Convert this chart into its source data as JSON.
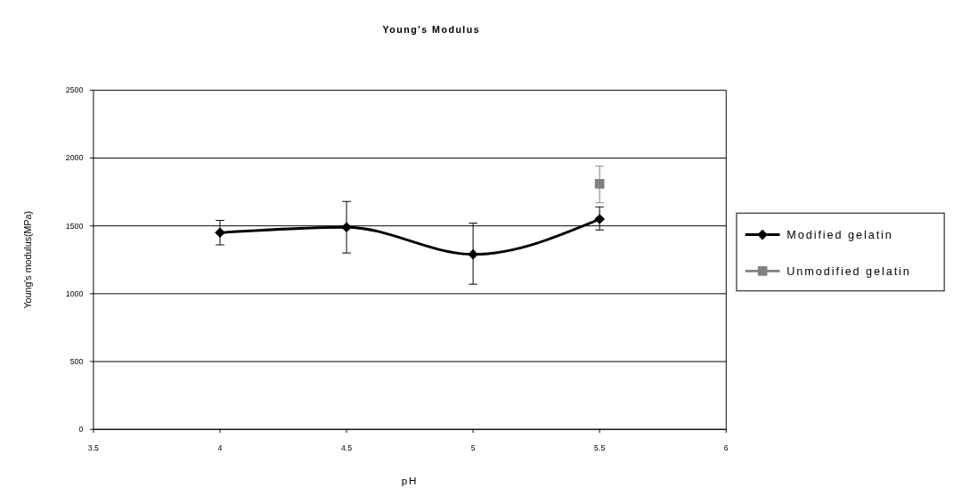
{
  "chart_data": {
    "type": "line",
    "title": "Young's Modulus",
    "xlabel": "pH",
    "ylabel": "Young's modulus(MPa)",
    "xlim": [
      3.5,
      6
    ],
    "xticks": [
      3.5,
      4,
      4.5,
      5,
      5.5,
      6
    ],
    "ylim": [
      0,
      2500
    ],
    "yticks": [
      0,
      500,
      1000,
      1500,
      2000,
      2500
    ],
    "grid": "y",
    "legend": "right",
    "series": [
      {
        "name": "Modified gelatin",
        "color": "#000000",
        "marker": "diamond",
        "x": [
          4,
          4.5,
          5,
          5.5
        ],
        "values": [
          1450,
          1490,
          1290,
          1550
        ],
        "errors": [
          [
            1360,
            1540
          ],
          [
            1300,
            1680
          ],
          [
            1070,
            1520
          ],
          [
            1470,
            1640
          ]
        ]
      },
      {
        "name": "Unmodified gelatin",
        "color": "#808080",
        "marker": "square",
        "x": [
          5.5
        ],
        "values": [
          1810
        ],
        "errors": [
          [
            1670,
            1940
          ]
        ]
      }
    ]
  }
}
